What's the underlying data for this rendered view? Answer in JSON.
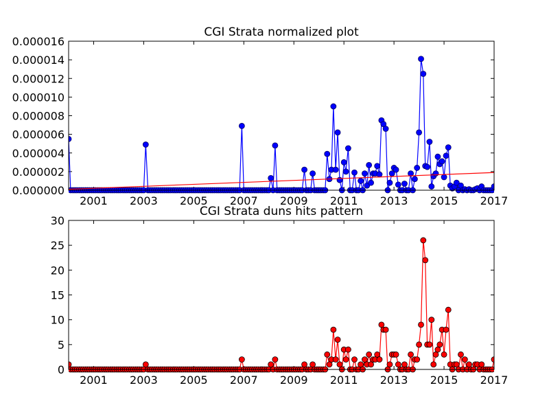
{
  "chart_data": [
    {
      "type": "line",
      "title": "CGI Strata normalized plot",
      "xlabel": "",
      "ylabel": "",
      "xlim": [
        2000.0,
        2017.0
      ],
      "ylim": [
        0,
        1.6e-05
      ],
      "x_ticks": [
        "2001",
        "2003",
        "2005",
        "2007",
        "2009",
        "2011",
        "2013",
        "2015",
        "2017"
      ],
      "y_ticks": [
        "0.000000",
        "0.000002",
        "0.000004",
        "0.000006",
        "0.000008",
        "0.000010",
        "0.000012",
        "0.000014",
        "0.000016"
      ],
      "grid": false,
      "legend": "none",
      "colors": {
        "series": "#0000ff",
        "trend": "#ff0000"
      },
      "series": [
        {
          "marker": "circle",
          "x": [
            2000.0,
            2003.08,
            2006.92,
            2008.08,
            2008.25,
            2009.42,
            2009.75,
            2010.33,
            2010.42,
            2010.5,
            2010.58,
            2010.67,
            2010.75,
            2010.83,
            2010.92,
            2011.0,
            2011.08,
            2011.17,
            2011.25,
            2011.33,
            2011.42,
            2011.58,
            2011.67,
            2011.83,
            2011.92,
            2012.0,
            2012.08,
            2012.17,
            2012.25,
            2012.33,
            2012.42,
            2012.5,
            2012.58,
            2012.67,
            2012.75,
            2012.83,
            2012.92,
            2013.0,
            2013.08,
            2013.17,
            2013.25,
            2013.33,
            2013.42,
            2013.5,
            2013.67,
            2013.83,
            2013.92,
            2014.0,
            2014.08,
            2014.17,
            2014.25,
            2014.33,
            2014.42,
            2014.5,
            2014.58,
            2014.67,
            2014.75,
            2014.83,
            2014.92,
            2015.0,
            2015.08,
            2015.17,
            2015.25,
            2015.33,
            2015.42,
            2015.5,
            2015.58,
            2015.67,
            2015.75,
            2015.83,
            2015.92,
            2016.0,
            2016.08,
            2016.25,
            2016.33,
            2016.5,
            2016.67,
            2016.83,
            2016.92,
            2017.0
          ],
          "y": [
            5.5e-06,
            4.9e-06,
            6.9e-06,
            1.3e-06,
            4.8e-06,
            2.2e-06,
            1.8e-06,
            3.9e-06,
            1.2e-06,
            2.2e-06,
            9e-06,
            2.2e-06,
            6.2e-06,
            1.1e-06,
            0.0,
            3e-06,
            2e-06,
            4.5e-06,
            0.0,
            0.0,
            1.9e-06,
            0.0,
            1e-06,
            1.8e-06,
            5e-07,
            2.7e-06,
            8e-07,
            1.8e-06,
            1.8e-06,
            2.6e-06,
            1.7e-06,
            7.5e-06,
            7.1e-06,
            6.6e-06,
            0.0,
            8e-07,
            1.8e-06,
            2.4e-06,
            2.2e-06,
            6e-07,
            0.0,
            0.0,
            7e-07,
            0.0,
            1.8e-06,
            1.2e-06,
            2.4e-06,
            6.2e-06,
            1.41e-05,
            1.25e-05,
            2.6e-06,
            2.5e-06,
            5.2e-06,
            4e-07,
            1.5e-06,
            1.8e-06,
            3.6e-06,
            2.8e-06,
            3.1e-06,
            1.4e-06,
            3.7e-06,
            4.6e-06,
            5e-07,
            2e-07,
            4e-07,
            8e-07,
            0.0,
            5e-07,
            0.0,
            1e-07,
            0.0,
            1e-07,
            0.0,
            1e-07,
            2e-07,
            4e-07,
            0.0,
            0.0,
            0.0,
            4e-07
          ]
        },
        {
          "type": "trend_line",
          "x": [
            2000.0,
            2017.0
          ],
          "y": [
            1e-07,
            1.9e-06
          ]
        }
      ]
    },
    {
      "type": "line",
      "title": "CGI Strata duns hits pattern",
      "xlabel": "",
      "ylabel": "",
      "xlim": [
        2000.0,
        2017.0
      ],
      "ylim": [
        0,
        30
      ],
      "x_ticks": [
        "2001",
        "2003",
        "2005",
        "2007",
        "2009",
        "2011",
        "2013",
        "2015",
        "2017"
      ],
      "y_ticks": [
        "0",
        "5",
        "10",
        "15",
        "20",
        "25",
        "30"
      ],
      "grid": false,
      "legend": "none",
      "colors": {
        "series": "#ff0000"
      },
      "series": [
        {
          "marker": "circle",
          "x": [
            2000.0,
            2003.08,
            2006.92,
            2008.08,
            2008.25,
            2009.42,
            2009.75,
            2010.33,
            2010.42,
            2010.5,
            2010.58,
            2010.67,
            2010.75,
            2010.83,
            2010.92,
            2011.0,
            2011.08,
            2011.17,
            2011.25,
            2011.33,
            2011.42,
            2011.58,
            2011.67,
            2011.83,
            2011.92,
            2012.0,
            2012.08,
            2012.17,
            2012.25,
            2012.33,
            2012.42,
            2012.5,
            2012.58,
            2012.67,
            2012.75,
            2012.83,
            2012.92,
            2013.0,
            2013.08,
            2013.17,
            2013.25,
            2013.33,
            2013.42,
            2013.5,
            2013.67,
            2013.83,
            2013.92,
            2014.0,
            2014.08,
            2014.17,
            2014.25,
            2014.33,
            2014.42,
            2014.5,
            2014.58,
            2014.67,
            2014.75,
            2014.83,
            2014.92,
            2015.0,
            2015.08,
            2015.17,
            2015.25,
            2015.33,
            2015.42,
            2015.5,
            2015.58,
            2015.67,
            2015.75,
            2015.83,
            2015.92,
            2016.0,
            2016.08,
            2016.25,
            2016.33,
            2016.5,
            2016.67,
            2016.83,
            2016.92,
            2017.0
          ],
          "y": [
            1,
            1,
            2,
            1,
            2,
            1,
            1,
            3,
            1,
            2,
            8,
            2,
            6,
            1,
            0,
            4,
            2,
            4,
            0,
            0,
            2,
            0,
            1,
            2,
            1,
            3,
            1,
            2,
            2,
            3,
            2,
            9,
            8,
            8,
            0,
            1,
            3,
            3,
            3,
            1,
            0,
            0,
            1,
            0,
            3,
            2,
            2,
            5,
            9,
            26,
            22,
            5,
            5,
            10,
            1,
            3,
            4,
            5,
            8,
            3,
            8,
            12,
            1,
            0,
            1,
            1,
            0,
            3,
            0,
            2,
            0,
            1,
            0,
            1,
            1,
            1,
            0,
            0,
            0,
            2
          ]
        }
      ]
    }
  ]
}
